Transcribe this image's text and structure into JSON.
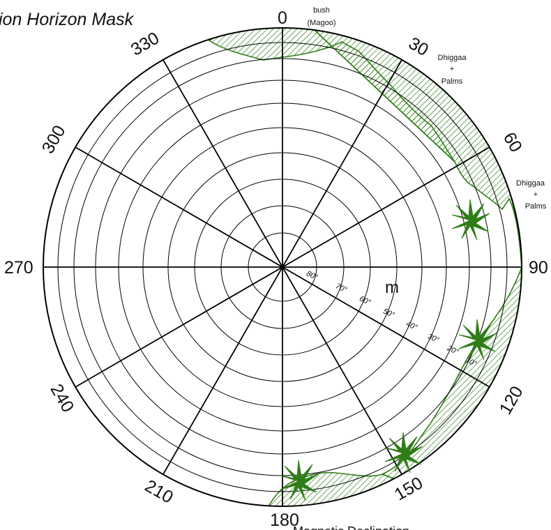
{
  "diagram": {
    "title": "ion Horizon Mask",
    "bearing_labels": [
      "0",
      "30",
      "60",
      "90",
      "120",
      "150",
      "180",
      "210",
      "240",
      "270",
      "300",
      "330"
    ],
    "elevation_labels": [
      "80°",
      "70°",
      "60°",
      "50°",
      "40°",
      "30°",
      "20°",
      "10°"
    ],
    "magnetic_marker": "m",
    "footer_label": "Magnetic Declination",
    "annotations": {
      "bush": [
        "bush",
        "(Magoo)"
      ],
      "dhiggaa_1": [
        "Dhiggaa",
        "+",
        "Palms"
      ],
      "dhiggaa_2": [
        "Dhiggaa",
        "+",
        "Palms"
      ]
    },
    "colors": {
      "mask_line": "#2f7d18",
      "mask_hatch": "#2f7d18",
      "palm": "#2f7d18",
      "grid": "#000000"
    },
    "icons": [
      "palm-tree-icon"
    ]
  }
}
